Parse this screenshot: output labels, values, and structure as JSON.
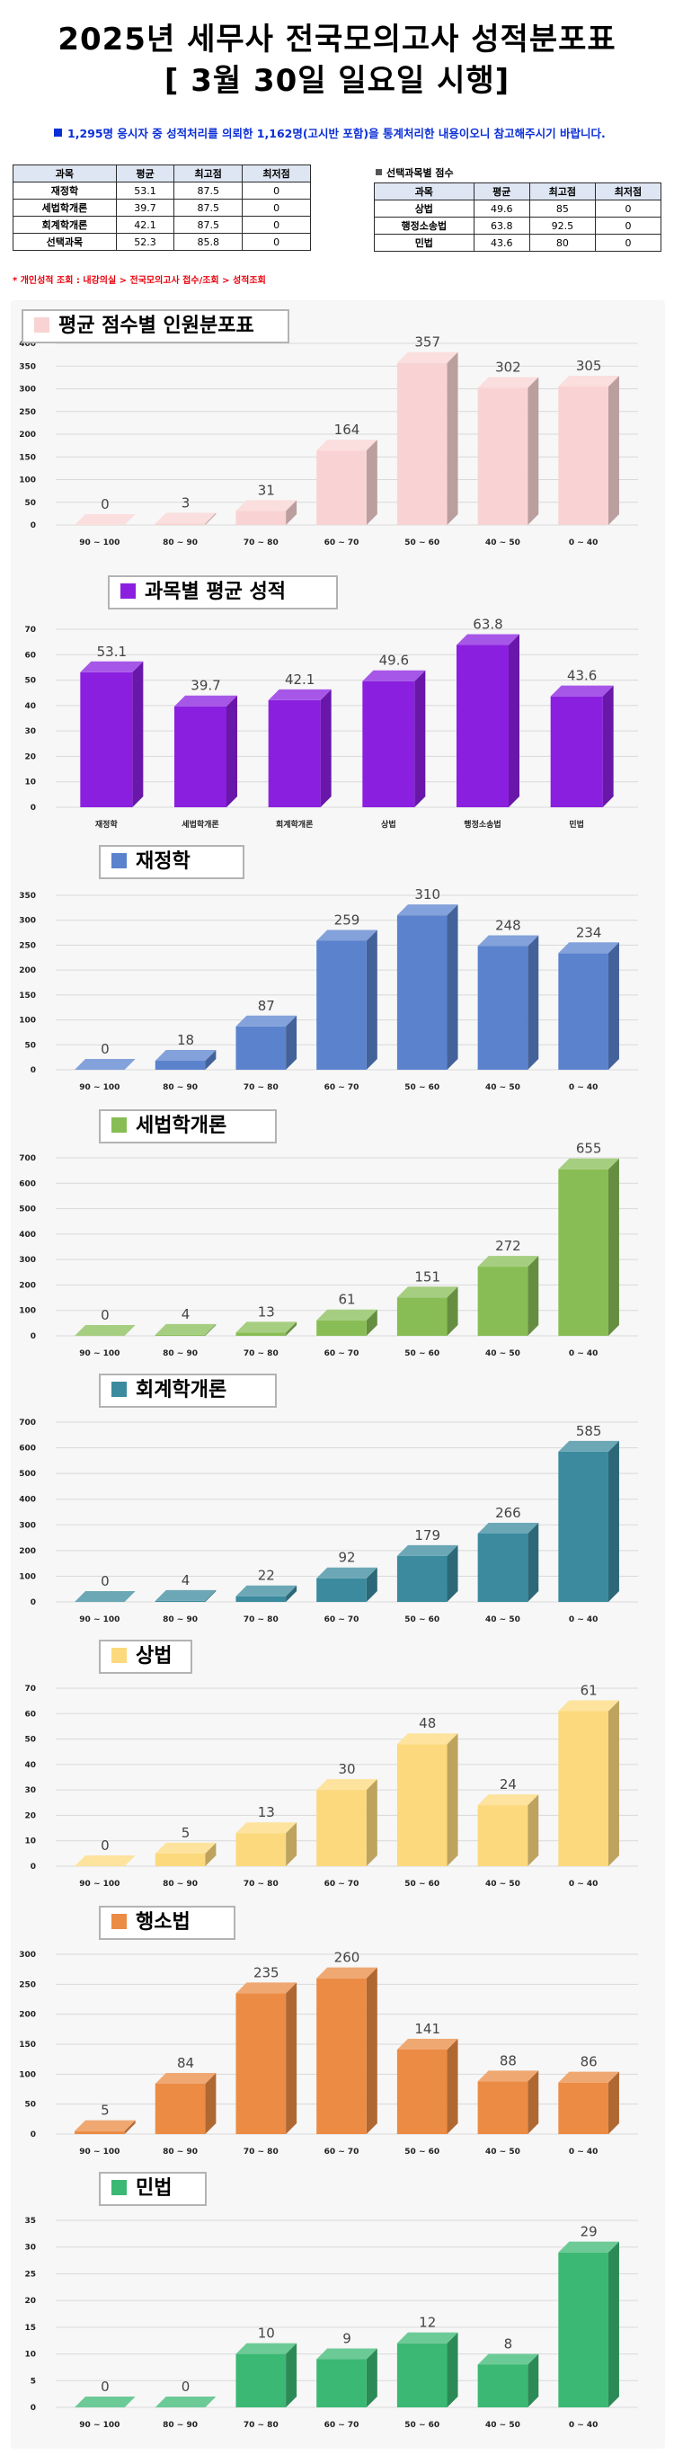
{
  "header": {
    "title": "2025년 세무사 전국모의고사 성적분포표",
    "subtitle": "[ 3월 30일 일요일 시행]",
    "notice": "1,295명 응시자 중 성적처리를 의뢰한 1,162명(고시반 포함)을 통계처리한 내용이오니 참고해주시기 바랍니다."
  },
  "score_table": {
    "columns": [
      "과목",
      "평균",
      "최고점",
      "최저점"
    ],
    "rows": [
      [
        "재정학",
        "53.1",
        "87.5",
        "0"
      ],
      [
        "세법학개론",
        "39.7",
        "87.5",
        "0"
      ],
      [
        "회계학개론",
        "42.1",
        "87.5",
        "0"
      ],
      [
        "선택과목",
        "52.3",
        "85.8",
        "0"
      ]
    ]
  },
  "elective_table": {
    "title": "선택과목별 점수",
    "columns": [
      "과목",
      "평균",
      "최고점",
      "최저점"
    ],
    "rows": [
      [
        "상법",
        "49.6",
        "85",
        "0"
      ],
      [
        "행정소송법",
        "63.8",
        "92.5",
        "0"
      ],
      [
        "민법",
        "43.6",
        "80",
        "0"
      ]
    ]
  },
  "link_text": "* 개인성적 조회 : 내강의실 > 전국모의고사 접수/조회 > 성적조회",
  "chart_data": [
    {
      "type": "bar",
      "title": "평균 점수별 인원분포표",
      "color": "#f9d3d3",
      "categories": [
        "90 ~ 100",
        "80 ~ 90",
        "70 ~ 80",
        "60 ~ 70",
        "50 ~ 60",
        "40 ~ 50",
        "0 ~ 40"
      ],
      "values": [
        0,
        3,
        31,
        164,
        357,
        302,
        305
      ],
      "ylim": [
        0,
        400
      ],
      "yticks": [
        "0",
        "50",
        "100",
        "150",
        "200",
        "250",
        "300",
        "350",
        "400"
      ]
    },
    {
      "type": "bar",
      "title": "과목별 평균 성적",
      "color": "#8a1fe0",
      "categories": [
        "재정학",
        "세법학개론",
        "회계학개론",
        "상법",
        "행정소송법",
        "민법"
      ],
      "values": [
        53.1,
        39.7,
        42.1,
        49.6,
        63.8,
        43.6
      ],
      "ylim": [
        0,
        70
      ],
      "yticks": [
        "0",
        "10",
        "20",
        "30",
        "40",
        "50",
        "60",
        "70"
      ]
    },
    {
      "type": "bar",
      "title": "재정학",
      "color": "#5a82cd",
      "categories": [
        "90 ~ 100",
        "80 ~ 90",
        "70 ~ 80",
        "60 ~ 70",
        "50 ~ 60",
        "40 ~ 50",
        "0 ~ 40"
      ],
      "values": [
        0,
        18,
        87,
        259,
        310,
        248,
        234
      ],
      "ylim": [
        0,
        350
      ],
      "yticks": [
        "0",
        "50",
        "100",
        "150",
        "200",
        "250",
        "300",
        "350"
      ]
    },
    {
      "type": "bar",
      "title": "세법학개론",
      "color": "#88bd55",
      "categories": [
        "90 ~ 100",
        "80 ~ 90",
        "70 ~ 80",
        "60 ~ 70",
        "50 ~ 60",
        "40 ~ 50",
        "0 ~ 40"
      ],
      "values": [
        0,
        4,
        13,
        61,
        151,
        272,
        655
      ],
      "ylim": [
        0,
        700
      ],
      "yticks": [
        "0",
        "100",
        "200",
        "300",
        "400",
        "500",
        "600",
        "700"
      ]
    },
    {
      "type": "bar",
      "title": "회계학개론",
      "color": "#3b8a9e",
      "categories": [
        "90 ~ 100",
        "80 ~ 90",
        "70 ~ 80",
        "60 ~ 70",
        "50 ~ 60",
        "40 ~ 50",
        "0 ~ 40"
      ],
      "values": [
        0,
        4,
        22,
        92,
        179,
        266,
        585
      ],
      "ylim": [
        0,
        700
      ],
      "yticks": [
        "0",
        "100",
        "200",
        "300",
        "400",
        "500",
        "600",
        "700"
      ]
    },
    {
      "type": "bar",
      "title": "상법",
      "color": "#fcd97c",
      "categories": [
        "90 ~ 100",
        "80 ~ 90",
        "70 ~ 80",
        "60 ~ 70",
        "50 ~ 60",
        "40 ~ 50",
        "0 ~ 40"
      ],
      "values": [
        0,
        5,
        13,
        30,
        48,
        24,
        61
      ],
      "ylim": [
        0,
        70
      ],
      "yticks": [
        "0",
        "10",
        "20",
        "30",
        "40",
        "50",
        "60",
        "70"
      ]
    },
    {
      "type": "bar",
      "title": "행소법",
      "color": "#eb8b44",
      "categories": [
        "90 ~ 100",
        "80 ~ 90",
        "70 ~ 80",
        "60 ~ 70",
        "50 ~ 60",
        "40 ~ 50",
        "0 ~ 40"
      ],
      "values": [
        5,
        84,
        235,
        260,
        141,
        88,
        86
      ],
      "ylim": [
        0,
        300
      ],
      "yticks": [
        "0",
        "50",
        "100",
        "150",
        "200",
        "250",
        "300"
      ]
    },
    {
      "type": "bar",
      "title": "민법",
      "color": "#3bb873",
      "categories": [
        "90 ~ 100",
        "80 ~ 90",
        "70 ~ 80",
        "60 ~ 70",
        "50 ~ 60",
        "40 ~ 50",
        "0 ~ 40"
      ],
      "values": [
        0,
        0,
        10,
        9,
        12,
        8,
        29
      ],
      "ylim": [
        0,
        35
      ],
      "yticks": [
        "0",
        "5",
        "10",
        "15",
        "20",
        "25",
        "30",
        "35"
      ]
    }
  ]
}
